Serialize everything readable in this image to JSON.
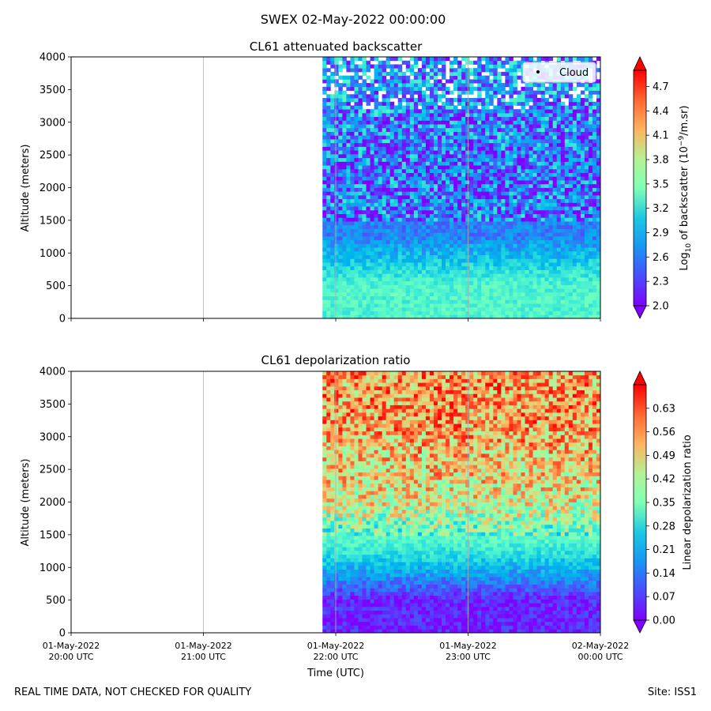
{
  "figure": {
    "title": "SWEX 02-May-2022 00:00:00",
    "footer_left": "REAL TIME DATA, NOT CHECKED FOR QUALITY",
    "footer_right": "Site: ISS1"
  },
  "chart_data": [
    {
      "type": "heatmap",
      "title": "CL61 attenuated backscatter",
      "ylabel": "Altitude (meters)",
      "xlabel": "",
      "ylim": [
        0,
        4000
      ],
      "yticks": [
        "0",
        "500",
        "1000",
        "1500",
        "2000",
        "2500",
        "3000",
        "3500",
        "4000"
      ],
      "xticks": [],
      "colorbar": {
        "label": "Log10 of backscatter (10^-9/m.sr)",
        "label_main": "Log",
        "label_sub": "10",
        "label_mid": " of backscatter (10",
        "label_sup": "−9",
        "label_end": "/m.sr)",
        "min": 2.0,
        "max": 4.9,
        "ticks": [
          "2.0",
          "2.3",
          "2.6",
          "2.9",
          "3.2",
          "3.5",
          "3.8",
          "4.1",
          "4.4",
          "4.7"
        ],
        "colormap": "rainbow"
      },
      "legend": {
        "label": "Cloud",
        "position": "top-right"
      },
      "data_start_time": "01-May-2022 21:54 UTC",
      "profile_summary": [
        {
          "altitude_range": "0–1000",
          "value_approx": 3.2
        },
        {
          "altitude_range": "1000–1500",
          "value_approx": 2.5
        },
        {
          "altitude_range": "1500–3000",
          "value_approx": 2.4
        },
        {
          "altitude_range": "3000–4000",
          "value_approx": 2.6
        }
      ]
    },
    {
      "type": "heatmap",
      "title": "CL61 depolarization ratio",
      "ylabel": "Altitude (meters)",
      "xlabel": "Time (UTC)",
      "ylim": [
        0,
        4000
      ],
      "yticks": [
        "0",
        "500",
        "1000",
        "1500",
        "2000",
        "2500",
        "3000",
        "3500",
        "4000"
      ],
      "xticks": [
        {
          "line1": "01-May-2022",
          "line2": "20:00 UTC"
        },
        {
          "line1": "01-May-2022",
          "line2": "21:00 UTC"
        },
        {
          "line1": "01-May-2022",
          "line2": "22:00 UTC"
        },
        {
          "line1": "01-May-2022",
          "line2": "23:00 UTC"
        },
        {
          "line1": "02-May-2022",
          "line2": "00:00 UTC"
        }
      ],
      "colorbar": {
        "label": "Linear depolarization ratio",
        "min": 0.0,
        "max": 0.7,
        "ticks": [
          "0.00",
          "0.07",
          "0.14",
          "0.21",
          "0.28",
          "0.35",
          "0.42",
          "0.49",
          "0.56",
          "0.63"
        ],
        "colormap": "rainbow"
      },
      "data_start_time": "01-May-2022 21:54 UTC",
      "profile_summary": [
        {
          "altitude_range": "0–1000",
          "value_approx": 0.03
        },
        {
          "altitude_range": "1000–1500",
          "value_approx": 0.25
        },
        {
          "altitude_range": "1500–2500",
          "value_approx": 0.45
        },
        {
          "altitude_range": "2500–4000",
          "value_approx": 0.55
        }
      ]
    }
  ]
}
